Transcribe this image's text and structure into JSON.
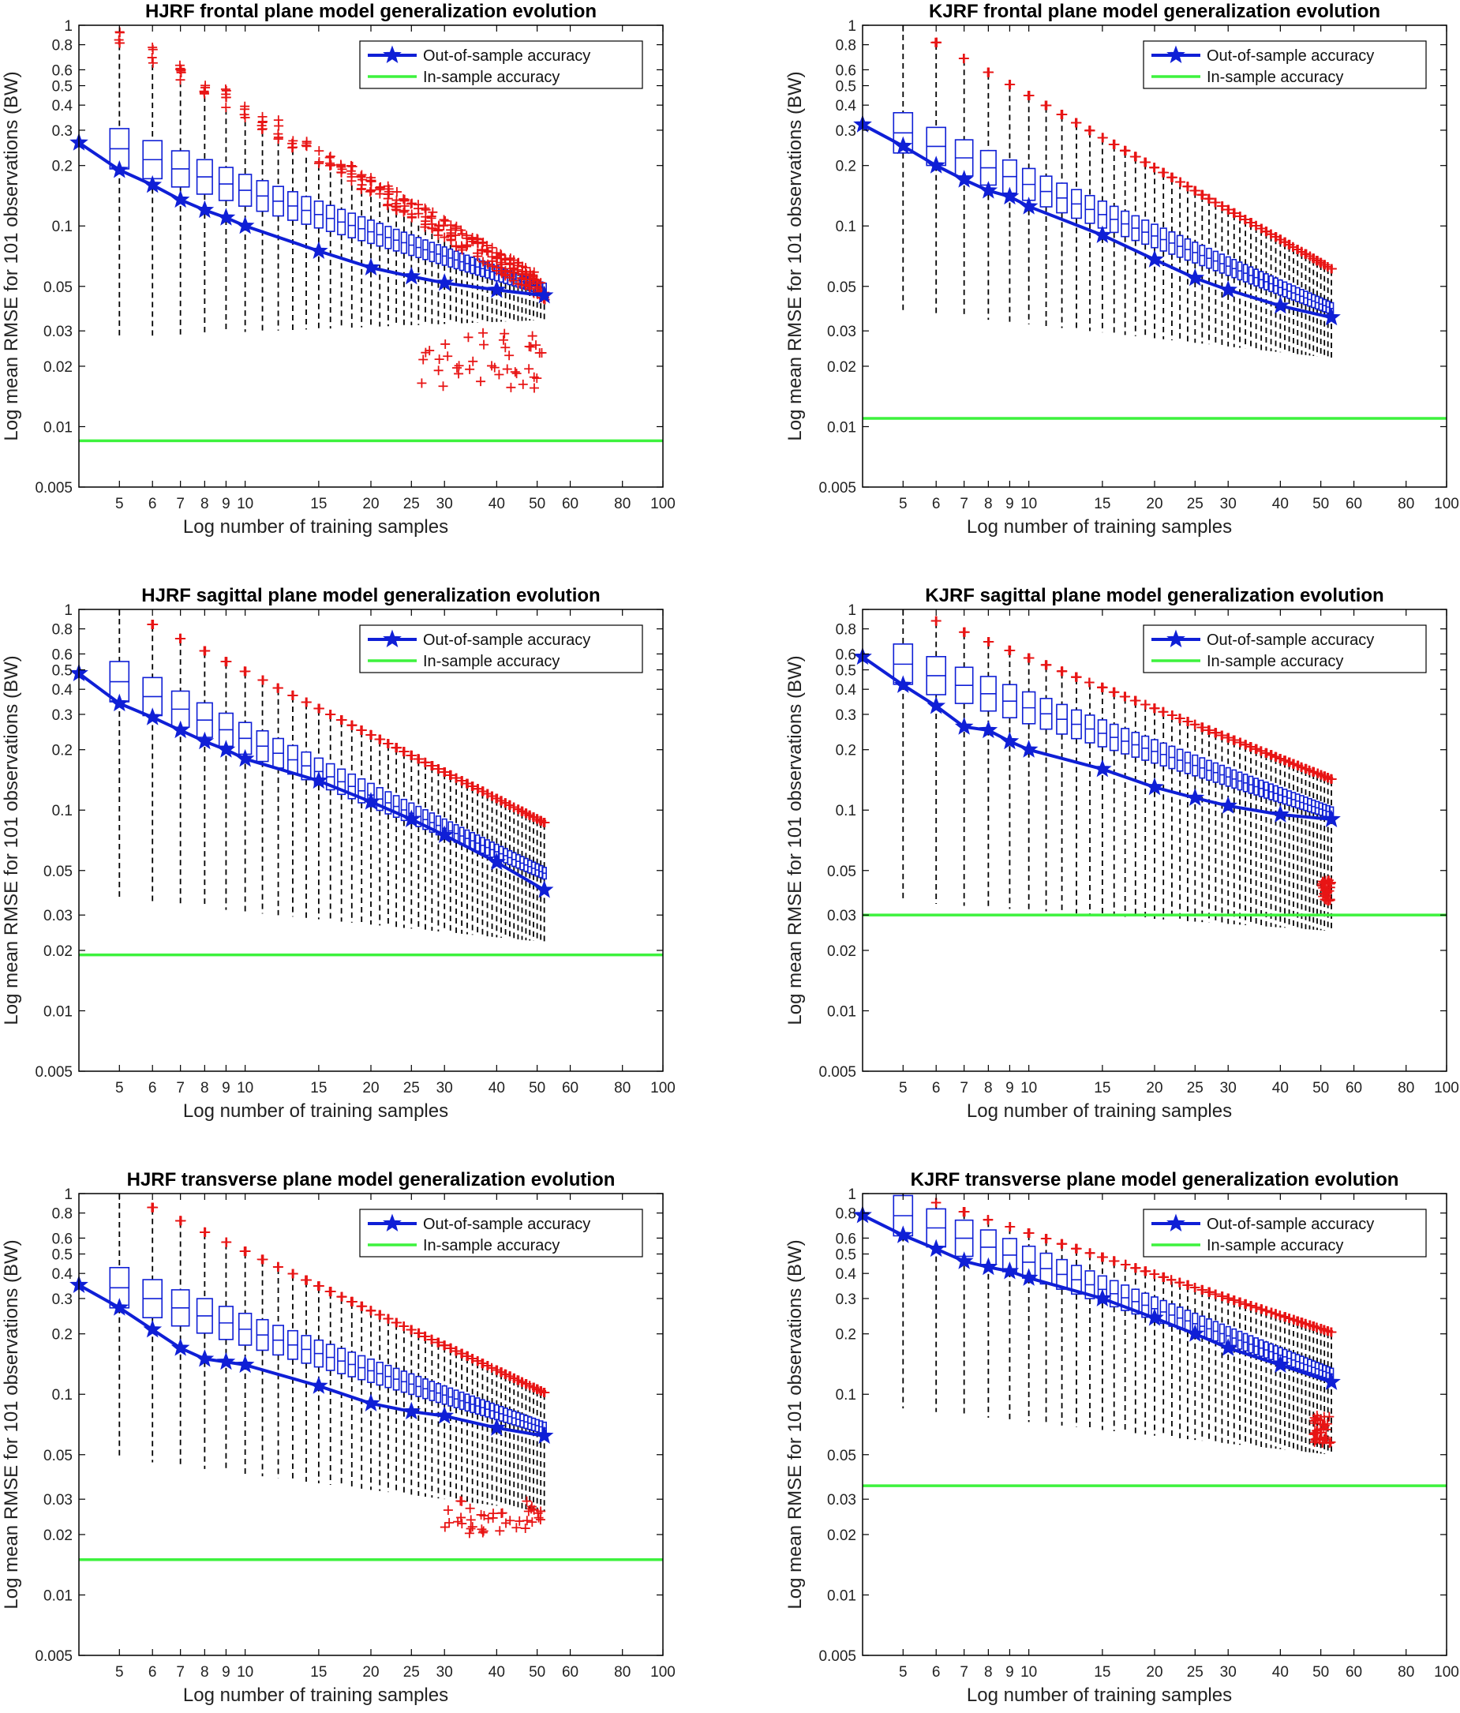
{
  "figure": {
    "colors": {
      "out_of_sample": "#0f1fd6",
      "in_sample": "#3df23d",
      "outliers": "#e81515",
      "whiskers": "#000000"
    }
  },
  "chart_data": [
    {
      "type": "box-line",
      "title": "HJRF frontal plane model generalization evolution",
      "xlabel": "Log number of training samples",
      "ylabel": "Log mean RMSE for 101 observations (BW)",
      "x_scale": "log",
      "y_scale": "log",
      "xlim": [
        4,
        100
      ],
      "ylim": [
        0.005,
        1
      ],
      "xticks": [
        5,
        6,
        7,
        8,
        9,
        10,
        15,
        20,
        25,
        30,
        40,
        50,
        60,
        80,
        100
      ],
      "yticks": [
        0.005,
        0.01,
        0.02,
        0.03,
        0.05,
        0.1,
        0.2,
        0.3,
        0.4,
        0.5,
        0.6,
        0.8,
        1
      ],
      "legend": [
        "Out-of-sample accuracy",
        "In-sample accuracy"
      ],
      "legend_position": "top-right",
      "series": [
        {
          "name": "Out-of-sample accuracy",
          "x": [
            4,
            5,
            6,
            7,
            8,
            9,
            10,
            15,
            20,
            25,
            30,
            40,
            52
          ],
          "y": [
            0.26,
            0.19,
            0.16,
            0.135,
            0.12,
            0.11,
            0.1,
            0.075,
            0.062,
            0.056,
            0.052,
            0.048,
            0.045
          ]
        },
        {
          "name": "In-sample accuracy",
          "y": 0.0085
        }
      ],
      "box_start": [
        5,
        0.25,
        0.8,
        0.028
      ],
      "box_end": [
        52,
        0.05,
        0.042,
        0.033
      ],
      "upper_outliers_start": 1.0,
      "upper_outliers_end": 0.055,
      "lower_outliers": {
        "x_range": [
          25,
          52
        ],
        "y_range": [
          0.015,
          0.03
        ]
      },
      "whisker_bottom_start": 0.028,
      "whisker_bottom_end": 0.034
    },
    {
      "type": "box-line",
      "title": "KJRF frontal plane model generalization evolution",
      "xlabel": "Log number of training samples",
      "ylabel": "Log mean RMSE for 101 observations (BW)",
      "x_scale": "log",
      "y_scale": "log",
      "xlim": [
        4,
        100
      ],
      "ylim": [
        0.005,
        1
      ],
      "xticks": [
        5,
        6,
        7,
        8,
        9,
        10,
        15,
        20,
        25,
        30,
        40,
        50,
        60,
        80,
        100
      ],
      "yticks": [
        0.005,
        0.01,
        0.02,
        0.03,
        0.05,
        0.1,
        0.2,
        0.3,
        0.4,
        0.5,
        0.6,
        0.8,
        1
      ],
      "legend": [
        "Out-of-sample accuracy",
        "In-sample accuracy"
      ],
      "legend_position": "top-right",
      "series": [
        {
          "name": "Out-of-sample accuracy",
          "x": [
            4,
            5,
            6,
            7,
            8,
            9,
            10,
            15,
            20,
            25,
            30,
            40,
            53
          ],
          "y": [
            0.32,
            0.25,
            0.2,
            0.17,
            0.15,
            0.14,
            0.125,
            0.09,
            0.068,
            0.055,
            0.048,
            0.04,
            0.035
          ]
        },
        {
          "name": "In-sample accuracy",
          "y": 0.011
        }
      ],
      "box_start": [
        5,
        0.3,
        1.0,
        0.038
      ],
      "box_end": [
        53,
        0.04,
        0.06,
        0.025
      ],
      "upper_outliers_start": 1.0,
      "upper_outliers_end": 0.06,
      "whisker_bottom_start": 0.038,
      "whisker_bottom_end": 0.022
    },
    {
      "type": "box-line",
      "title": "HJRF sagittal plane model generalization evolution",
      "xlabel": "Log number of training samples",
      "ylabel": "Log mean RMSE for 101 observations (BW)",
      "x_scale": "log",
      "y_scale": "log",
      "xlim": [
        4,
        100
      ],
      "ylim": [
        0.005,
        1
      ],
      "xticks": [
        5,
        6,
        7,
        8,
        9,
        10,
        15,
        20,
        25,
        30,
        40,
        50,
        60,
        80,
        100
      ],
      "yticks": [
        0.005,
        0.01,
        0.02,
        0.03,
        0.05,
        0.1,
        0.2,
        0.3,
        0.4,
        0.5,
        0.6,
        0.8,
        1
      ],
      "legend": [
        "Out-of-sample accuracy",
        "In-sample accuracy"
      ],
      "legend_position": "top-right",
      "series": [
        {
          "name": "Out-of-sample accuracy",
          "x": [
            4,
            5,
            6,
            7,
            8,
            9,
            10,
            15,
            20,
            25,
            30,
            40,
            52
          ],
          "y": [
            0.48,
            0.34,
            0.29,
            0.25,
            0.22,
            0.2,
            0.18,
            0.14,
            0.11,
            0.09,
            0.075,
            0.055,
            0.04
          ]
        },
        {
          "name": "In-sample accuracy",
          "y": 0.019
        }
      ],
      "box_start": [
        5,
        0.45,
        1.0,
        0.036
      ],
      "box_end": [
        52,
        0.05,
        0.085,
        0.023
      ],
      "upper_outliers_start": 1.0,
      "upper_outliers_end": 0.07,
      "whisker_bottom_start": 0.036,
      "whisker_bottom_end": 0.022
    },
    {
      "type": "box-line",
      "title": "KJRF sagittal plane model generalization evolution",
      "xlabel": "Log number of training samples",
      "ylabel": "Log mean RMSE for 101 observations (BW)",
      "x_scale": "log",
      "y_scale": "log",
      "xlim": [
        4,
        100
      ],
      "ylim": [
        0.005,
        1
      ],
      "xticks": [
        5,
        6,
        7,
        8,
        9,
        10,
        15,
        20,
        25,
        30,
        40,
        50,
        60,
        80,
        100
      ],
      "yticks": [
        0.005,
        0.01,
        0.02,
        0.03,
        0.05,
        0.1,
        0.2,
        0.3,
        0.4,
        0.5,
        0.6,
        0.8,
        1
      ],
      "legend": [
        "Out-of-sample accuracy",
        "In-sample accuracy"
      ],
      "legend_position": "top-right",
      "series": [
        {
          "name": "Out-of-sample accuracy",
          "x": [
            4,
            5,
            6,
            7,
            8,
            9,
            10,
            15,
            20,
            25,
            30,
            40,
            53
          ],
          "y": [
            0.58,
            0.42,
            0.33,
            0.26,
            0.25,
            0.22,
            0.2,
            0.16,
            0.13,
            0.115,
            0.105,
            0.095,
            0.09
          ]
        },
        {
          "name": "In-sample accuracy",
          "y": 0.03
        }
      ],
      "box_start": [
        5,
        0.55,
        1.0,
        0.035
      ],
      "box_end": [
        53,
        0.1,
        0.14,
        0.028
      ],
      "upper_outliers_start": 1.0,
      "upper_outliers_end": 0.12,
      "lower_outliers": {
        "x_range": [
          50,
          53
        ],
        "y_range": [
          0.035,
          0.045
        ]
      },
      "whisker_bottom_start": 0.035,
      "whisker_bottom_end": 0.025
    },
    {
      "type": "box-line",
      "title": "HJRF transverse plane model generalization evolution",
      "xlabel": "Log number of training samples",
      "ylabel": "Log mean RMSE for 101 observations (BW)",
      "x_scale": "log",
      "y_scale": "log",
      "xlim": [
        4,
        100
      ],
      "ylim": [
        0.005,
        1
      ],
      "xticks": [
        5,
        6,
        7,
        8,
        9,
        10,
        15,
        20,
        25,
        30,
        40,
        50,
        60,
        80,
        100
      ],
      "yticks": [
        0.005,
        0.01,
        0.02,
        0.03,
        0.05,
        0.1,
        0.2,
        0.3,
        0.4,
        0.5,
        0.6,
        0.8,
        1
      ],
      "legend": [
        "Out-of-sample accuracy",
        "In-sample accuracy"
      ],
      "legend_position": "top-right",
      "series": [
        {
          "name": "Out-of-sample accuracy",
          "x": [
            4,
            5,
            6,
            7,
            8,
            9,
            10,
            15,
            20,
            25,
            30,
            40,
            52
          ],
          "y": [
            0.35,
            0.27,
            0.21,
            0.17,
            0.15,
            0.145,
            0.14,
            0.11,
            0.09,
            0.082,
            0.078,
            0.068,
            0.062
          ]
        },
        {
          "name": "In-sample accuracy",
          "y": 0.015
        }
      ],
      "box_start": [
        5,
        0.35,
        1.0,
        0.048
      ],
      "box_end": [
        52,
        0.07,
        0.1,
        0.028
      ],
      "upper_outliers_start": 1.0,
      "upper_outliers_end": 0.1,
      "lower_outliers": {
        "x_range": [
          30,
          52
        ],
        "y_range": [
          0.02,
          0.03
        ]
      },
      "whisker_bottom_start": 0.048,
      "whisker_bottom_end": 0.026
    },
    {
      "type": "box-line",
      "title": "KJRF transverse plane model generalization evolution",
      "xlabel": "Log number of training samples",
      "ylabel": "Log mean RMSE for 101 observations (BW)",
      "x_scale": "log",
      "y_scale": "log",
      "xlim": [
        4,
        100
      ],
      "ylim": [
        0.005,
        1
      ],
      "xticks": [
        5,
        6,
        7,
        8,
        9,
        10,
        15,
        20,
        25,
        30,
        40,
        50,
        60,
        80,
        100
      ],
      "yticks": [
        0.005,
        0.01,
        0.02,
        0.03,
        0.05,
        0.1,
        0.2,
        0.3,
        0.4,
        0.5,
        0.6,
        0.8,
        1
      ],
      "legend": [
        "Out-of-sample accuracy",
        "In-sample accuracy"
      ],
      "legend_position": "top-right",
      "series": [
        {
          "name": "Out-of-sample accuracy",
          "x": [
            4,
            5,
            6,
            7,
            8,
            9,
            10,
            15,
            20,
            25,
            30,
            40,
            53
          ],
          "y": [
            0.78,
            0.62,
            0.53,
            0.46,
            0.43,
            0.41,
            0.38,
            0.3,
            0.24,
            0.2,
            0.17,
            0.14,
            0.115
          ]
        },
        {
          "name": "In-sample accuracy",
          "y": 0.035
        }
      ],
      "box_start": [
        5,
        0.8,
        1.0,
        0.085
      ],
      "box_end": [
        53,
        0.13,
        0.2,
        0.055
      ],
      "upper_outliers_start": 1.0,
      "upper_outliers_end": 0.18,
      "lower_outliers": {
        "x_range": [
          48,
          53
        ],
        "y_range": [
          0.055,
          0.08
        ]
      },
      "whisker_bottom_start": 0.085,
      "whisker_bottom_end": 0.05
    }
  ]
}
